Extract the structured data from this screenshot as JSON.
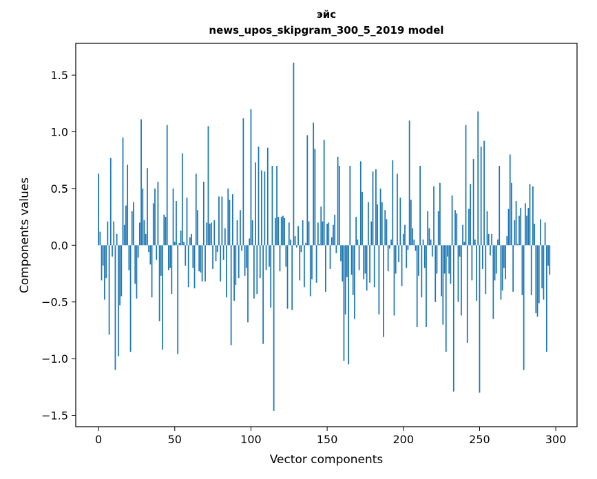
{
  "chart_data": {
    "type": "bar",
    "title_line1": "эйс",
    "title_line2": "news_upos_skipgram_300_5_2019 model",
    "xlabel": "Vector components",
    "ylabel": "Components values",
    "xlim": [
      -14.95,
      313.95
    ],
    "ylim": [
      -1.6,
      1.78
    ],
    "xticks": [
      0,
      50,
      100,
      150,
      200,
      250,
      300
    ],
    "yticks": [
      -1.5,
      -1.0,
      -0.5,
      0.0,
      0.5,
      1.0,
      1.5
    ],
    "ytick_labels": [
      "−1.5",
      "−1.0",
      "−0.5",
      "0.0",
      "0.5",
      "1.0",
      "1.5"
    ],
    "bar_color": "#1f77b4",
    "values": [
      0.63,
      0.12,
      -0.31,
      -0.18,
      -0.48,
      -0.29,
      0.21,
      -0.79,
      0.77,
      -0.1,
      0.21,
      -1.1,
      0.1,
      -0.98,
      -0.53,
      -0.45,
      0.95,
      0.18,
      0.35,
      0.71,
      -0.22,
      -0.94,
      0.3,
      0.38,
      -0.34,
      -0.47,
      -0.11,
      0.2,
      1.11,
      0.5,
      0.22,
      0.1,
      0.68,
      -0.06,
      -0.17,
      -0.46,
      0.37,
      0.5,
      -0.13,
      0.56,
      -0.67,
      -0.27,
      -0.92,
      0.27,
      0.25,
      1.06,
      -0.22,
      -0.2,
      -0.43,
      0.5,
      0.03,
      0.39,
      -0.96,
      0.02,
      0.13,
      0.81,
      0.03,
      -0.18,
      0.42,
      -0.37,
      0.07,
      0.1,
      -0.2,
      -0.38,
      0.63,
      0.31,
      -0.23,
      -0.24,
      -0.32,
      0.56,
      -0.32,
      0.2,
      1.05,
      0.19,
      0.2,
      -0.21,
      0.22,
      -0.14,
      -0.06,
      0.43,
      -0.32,
      0.43,
      -0.13,
      0.15,
      -0.46,
      0.5,
      0.4,
      -0.88,
      0.45,
      -0.49,
      -0.35,
      0.22,
      -0.29,
      0.31,
      -0.05,
      1.12,
      -0.27,
      -0.2,
      -0.68,
      0.06,
      1.2,
      0.22,
      -0.47,
      0.73,
      -0.43,
      0.87,
      -0.29,
      0.66,
      -0.87,
      0.65,
      -0.22,
      0.86,
      -0.19,
      -0.55,
      0.7,
      -1.46,
      0.24,
      0.7,
      0.25,
      -0.23,
      0.25,
      0.26,
      0.24,
      -0.19,
      -0.56,
      0.2,
      0.05,
      -0.57,
      1.61,
      0.08,
      -0.02,
      0.17,
      -0.31,
      -0.06,
      0.22,
      -0.37,
      0.02,
      0.97,
      0.21,
      -0.45,
      -0.3,
      1.08,
      0.85,
      -0.33,
      0.2,
      0.01,
      0.34,
      0.21,
      0.93,
      -0.41,
      0.19,
      0.2,
      -0.21,
      0.07,
      0.18,
      0.27,
      -0.07,
      0.78,
      0.7,
      -0.14,
      -0.32,
      -1.02,
      -0.61,
      -0.28,
      -1.05,
      0.7,
      -0.26,
      -0.44,
      -0.65,
      0.25,
      0.05,
      -0.22,
      0.74,
      0.47,
      -0.3,
      -0.25,
      -0.4,
      0.38,
      -0.33,
      0.21,
      0.65,
      -0.37,
      0.67,
      0.36,
      -0.61,
      0.5,
      0.38,
      -0.81,
      0.31,
      0.23,
      -0.23,
      -0.03,
      0.05,
      0.75,
      -0.62,
      -0.25,
      0.63,
      -0.15,
      0.42,
      -0.36,
      0.1,
      0.18,
      -0.2,
      -0.04,
      1.1,
      0.4,
      0.15,
      0.05,
      -0.05,
      -0.72,
      -0.27,
      0.7,
      -0.46,
      0.05,
      -0.2,
      -0.72,
      0.3,
      0.15,
      0.05,
      -0.1,
      0.52,
      -0.5,
      -0.25,
      0.3,
      0.55,
      -0.45,
      -0.7,
      -0.25,
      -0.94,
      -0.1,
      -0.25,
      -0.34,
      0.44,
      -1.29,
      0.31,
      0.28,
      -0.5,
      -0.1,
      -0.62,
      0.18,
      0.03,
      1.06,
      -0.86,
      0.32,
      0.54,
      -0.31,
      0.76,
      0.05,
      -0.49,
      1.18,
      -1.3,
      0.87,
      -0.21,
      0.92,
      -0.43,
      0.3,
      0.1,
      -0.09,
      0.1,
      -0.65,
      -0.31,
      -0.25,
      0.05,
      0.7,
      -0.48,
      -0.4,
      -0.2,
      -0.3,
      0.08,
      0.32,
      0.8,
      0.55,
      -0.41,
      0.22,
      0.39,
      0.01,
      0.26,
      0.33,
      -0.44,
      -1.1,
      0.37,
      0.26,
      0.33,
      0.54,
      -0.44,
      0.52,
      0.19,
      -0.6,
      -0.63,
      -0.51,
      0.23,
      -0.38,
      -0.48,
      0.2,
      -0.94,
      -0.18,
      -0.26
    ]
  }
}
